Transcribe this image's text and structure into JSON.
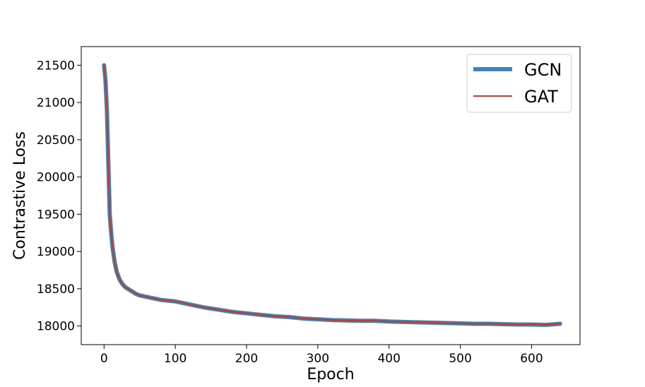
{
  "chart_data": {
    "type": "line",
    "title": "",
    "xlabel": "Epoch",
    "ylabel": "Contrastive Loss",
    "xlim": [
      -32,
      668
    ],
    "ylim": [
      17750,
      21750
    ],
    "xticks": [
      0,
      100,
      200,
      300,
      400,
      500,
      600
    ],
    "yticks": [
      18000,
      18500,
      19000,
      19500,
      20000,
      20500,
      21000,
      21500
    ],
    "grid": false,
    "legend_position": "top-right",
    "series": [
      {
        "name": "GCN",
        "color": "#4682b4",
        "line_style": "thick",
        "x": [
          0,
          2,
          4,
          6,
          8,
          10,
          12,
          15,
          18,
          22,
          26,
          30,
          35,
          40,
          45,
          50,
          60,
          70,
          80,
          90,
          100,
          120,
          140,
          160,
          180,
          200,
          220,
          240,
          260,
          280,
          300,
          320,
          340,
          360,
          380,
          400,
          420,
          440,
          460,
          480,
          500,
          520,
          540,
          560,
          580,
          600,
          620,
          640
        ],
        "values": [
          21500,
          21300,
          20900,
          20200,
          19500,
          19250,
          19050,
          18850,
          18720,
          18620,
          18560,
          18520,
          18490,
          18460,
          18430,
          18410,
          18390,
          18370,
          18350,
          18340,
          18330,
          18290,
          18250,
          18220,
          18190,
          18170,
          18150,
          18130,
          18120,
          18100,
          18090,
          18080,
          18075,
          18070,
          18070,
          18060,
          18055,
          18050,
          18045,
          18040,
          18035,
          18030,
          18030,
          18025,
          18020,
          18020,
          18015,
          18030
        ]
      },
      {
        "name": "GAT",
        "color": "#c0392b",
        "line_style": "thin",
        "x": [
          0,
          2,
          4,
          6,
          8,
          10,
          12,
          15,
          18,
          22,
          26,
          30,
          35,
          40,
          45,
          50,
          60,
          70,
          80,
          90,
          100,
          120,
          140,
          160,
          180,
          200,
          220,
          240,
          260,
          280,
          300,
          320,
          340,
          360,
          380,
          400,
          420,
          440,
          460,
          480,
          500,
          520,
          540,
          560,
          580,
          600,
          620,
          640
        ],
        "values": [
          21500,
          21300,
          20900,
          20200,
          19500,
          19250,
          19050,
          18850,
          18720,
          18620,
          18560,
          18520,
          18490,
          18460,
          18430,
          18410,
          18390,
          18370,
          18350,
          18340,
          18330,
          18290,
          18250,
          18220,
          18190,
          18170,
          18150,
          18130,
          18120,
          18100,
          18090,
          18080,
          18075,
          18070,
          18070,
          18060,
          18055,
          18050,
          18045,
          18040,
          18035,
          18030,
          18030,
          18025,
          18020,
          18020,
          18015,
          18030
        ]
      }
    ]
  }
}
